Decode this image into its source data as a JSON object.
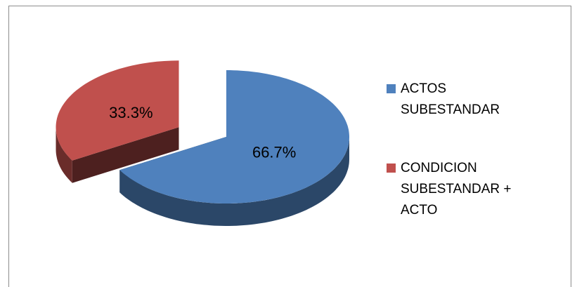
{
  "chart_data": {
    "type": "pie",
    "categories": [
      "ACTOS SUBESTANDAR",
      "CONDICION SUBESTANDAR + ACTO"
    ],
    "values": [
      66.7,
      33.3
    ],
    "value_labels": [
      "66.7%",
      "33.3%"
    ],
    "colors": [
      "#4f81bd",
      "#c0504d"
    ],
    "exploded": [
      false,
      true
    ],
    "legend": "right"
  }
}
